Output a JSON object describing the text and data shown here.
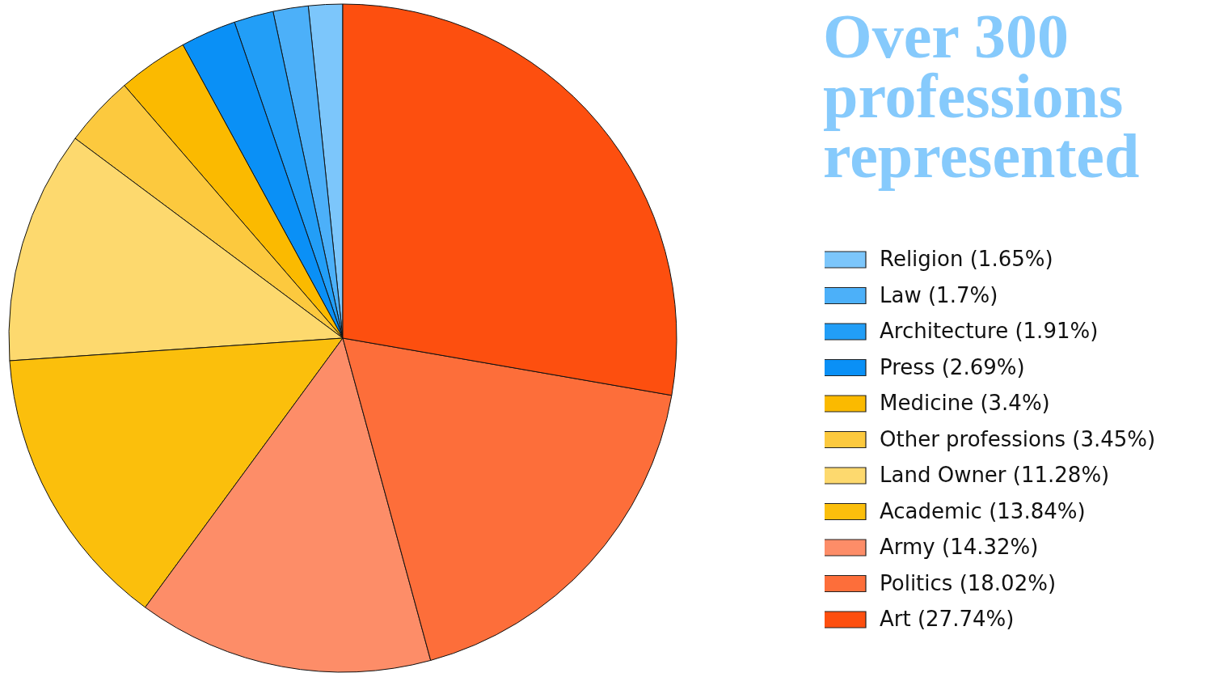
{
  "chart_data": {
    "type": "pie",
    "title": "Over 300 professions represented",
    "categories": [
      "Religion (1.65%)",
      "Law (1.7%)",
      "Architecture (1.91%)",
      "Press (2.69%)",
      "Medicine (3.4%)",
      "Other professions (3.45%)",
      "Land Owner (11.28%)",
      "Academic (13.84%)",
      "Army (14.32%)",
      "Politics (18.02%)",
      "Art (27.74%)"
    ],
    "values": [
      1.65,
      1.7,
      1.91,
      2.69,
      3.4,
      3.45,
      11.28,
      13.84,
      14.32,
      18.02,
      27.74
    ],
    "colors": [
      "#7cc6fb",
      "#4cb0f9",
      "#229ef7",
      "#0a90f6",
      "#fbba00",
      "#fcc93e",
      "#fdd96e",
      "#fbbf0c",
      "#fd8d68",
      "#fd6e3a",
      "#fd4f0f"
    ],
    "legend": "right"
  }
}
